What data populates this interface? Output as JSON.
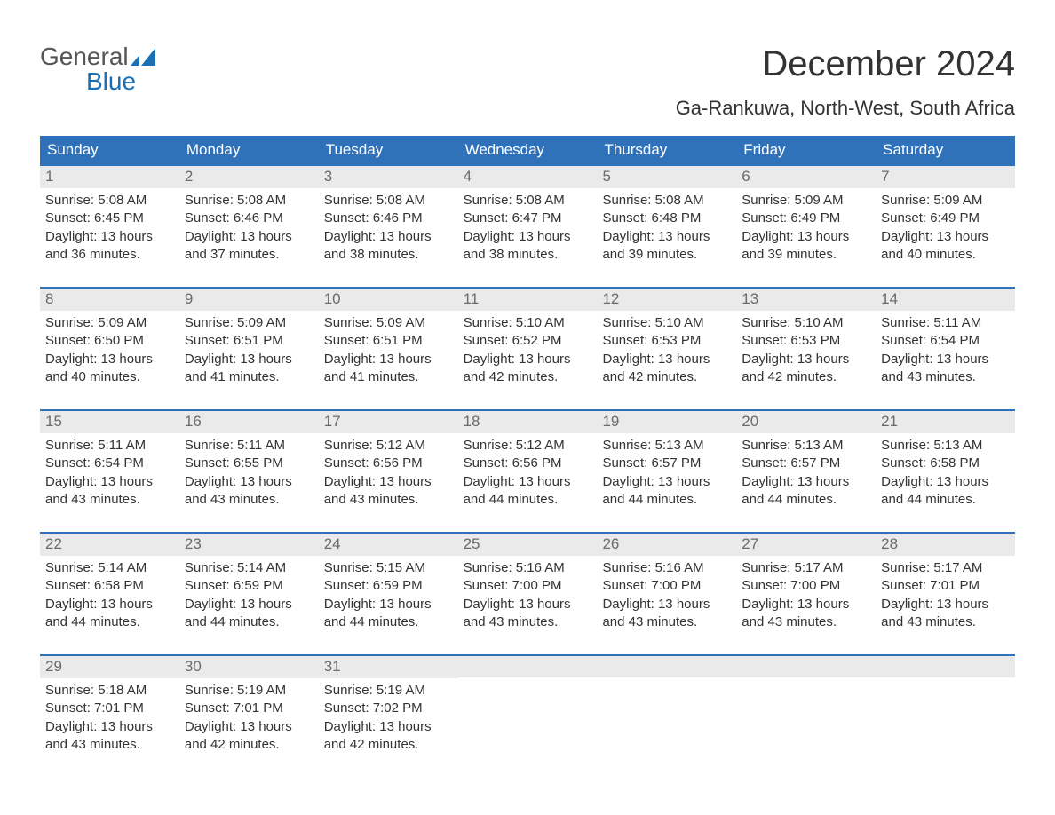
{
  "brand": {
    "top": "General",
    "bottom": "Blue",
    "mark_color": "#1b6fb5",
    "top_color": "#555555"
  },
  "header": {
    "month_title": "December 2024",
    "location": "Ga-Rankuwa, North-West, South Africa"
  },
  "colors": {
    "header_bg": "#2f72b9",
    "header_text": "#ffffff",
    "daynum_bg": "#eaeaea",
    "daynum_text": "#6b6b6b",
    "body_text": "#333333",
    "week_border": "#2f72b9",
    "page_bg": "#ffffff"
  },
  "typography": {
    "title_fontsize": 40,
    "location_fontsize": 22,
    "dow_fontsize": 17,
    "daynum_fontsize": 17,
    "body_fontsize": 15,
    "font_family": "Arial"
  },
  "labels": {
    "sunrise_prefix": "Sunrise: ",
    "sunset_prefix": "Sunset: ",
    "daylight_prefix": "Daylight: ",
    "hours_word": " hours",
    "and_word": "and ",
    "minutes_word": " minutes."
  },
  "days_of_week": [
    "Sunday",
    "Monday",
    "Tuesday",
    "Wednesday",
    "Thursday",
    "Friday",
    "Saturday"
  ],
  "calendar": {
    "type": "table",
    "columns": 7,
    "rows": 5,
    "weeks": [
      [
        {
          "num": "1",
          "sunrise": "5:08 AM",
          "sunset": "6:45 PM",
          "dl_h": "13",
          "dl_m": "36"
        },
        {
          "num": "2",
          "sunrise": "5:08 AM",
          "sunset": "6:46 PM",
          "dl_h": "13",
          "dl_m": "37"
        },
        {
          "num": "3",
          "sunrise": "5:08 AM",
          "sunset": "6:46 PM",
          "dl_h": "13",
          "dl_m": "38"
        },
        {
          "num": "4",
          "sunrise": "5:08 AM",
          "sunset": "6:47 PM",
          "dl_h": "13",
          "dl_m": "38"
        },
        {
          "num": "5",
          "sunrise": "5:08 AM",
          "sunset": "6:48 PM",
          "dl_h": "13",
          "dl_m": "39"
        },
        {
          "num": "6",
          "sunrise": "5:09 AM",
          "sunset": "6:49 PM",
          "dl_h": "13",
          "dl_m": "39"
        },
        {
          "num": "7",
          "sunrise": "5:09 AM",
          "sunset": "6:49 PM",
          "dl_h": "13",
          "dl_m": "40"
        }
      ],
      [
        {
          "num": "8",
          "sunrise": "5:09 AM",
          "sunset": "6:50 PM",
          "dl_h": "13",
          "dl_m": "40"
        },
        {
          "num": "9",
          "sunrise": "5:09 AM",
          "sunset": "6:51 PM",
          "dl_h": "13",
          "dl_m": "41"
        },
        {
          "num": "10",
          "sunrise": "5:09 AM",
          "sunset": "6:51 PM",
          "dl_h": "13",
          "dl_m": "41"
        },
        {
          "num": "11",
          "sunrise": "5:10 AM",
          "sunset": "6:52 PM",
          "dl_h": "13",
          "dl_m": "42"
        },
        {
          "num": "12",
          "sunrise": "5:10 AM",
          "sunset": "6:53 PM",
          "dl_h": "13",
          "dl_m": "42"
        },
        {
          "num": "13",
          "sunrise": "5:10 AM",
          "sunset": "6:53 PM",
          "dl_h": "13",
          "dl_m": "42"
        },
        {
          "num": "14",
          "sunrise": "5:11 AM",
          "sunset": "6:54 PM",
          "dl_h": "13",
          "dl_m": "43"
        }
      ],
      [
        {
          "num": "15",
          "sunrise": "5:11 AM",
          "sunset": "6:54 PM",
          "dl_h": "13",
          "dl_m": "43"
        },
        {
          "num": "16",
          "sunrise": "5:11 AM",
          "sunset": "6:55 PM",
          "dl_h": "13",
          "dl_m": "43"
        },
        {
          "num": "17",
          "sunrise": "5:12 AM",
          "sunset": "6:56 PM",
          "dl_h": "13",
          "dl_m": "43"
        },
        {
          "num": "18",
          "sunrise": "5:12 AM",
          "sunset": "6:56 PM",
          "dl_h": "13",
          "dl_m": "44"
        },
        {
          "num": "19",
          "sunrise": "5:13 AM",
          "sunset": "6:57 PM",
          "dl_h": "13",
          "dl_m": "44"
        },
        {
          "num": "20",
          "sunrise": "5:13 AM",
          "sunset": "6:57 PM",
          "dl_h": "13",
          "dl_m": "44"
        },
        {
          "num": "21",
          "sunrise": "5:13 AM",
          "sunset": "6:58 PM",
          "dl_h": "13",
          "dl_m": "44"
        }
      ],
      [
        {
          "num": "22",
          "sunrise": "5:14 AM",
          "sunset": "6:58 PM",
          "dl_h": "13",
          "dl_m": "44"
        },
        {
          "num": "23",
          "sunrise": "5:14 AM",
          "sunset": "6:59 PM",
          "dl_h": "13",
          "dl_m": "44"
        },
        {
          "num": "24",
          "sunrise": "5:15 AM",
          "sunset": "6:59 PM",
          "dl_h": "13",
          "dl_m": "44"
        },
        {
          "num": "25",
          "sunrise": "5:16 AM",
          "sunset": "7:00 PM",
          "dl_h": "13",
          "dl_m": "43"
        },
        {
          "num": "26",
          "sunrise": "5:16 AM",
          "sunset": "7:00 PM",
          "dl_h": "13",
          "dl_m": "43"
        },
        {
          "num": "27",
          "sunrise": "5:17 AM",
          "sunset": "7:00 PM",
          "dl_h": "13",
          "dl_m": "43"
        },
        {
          "num": "28",
          "sunrise": "5:17 AM",
          "sunset": "7:01 PM",
          "dl_h": "13",
          "dl_m": "43"
        }
      ],
      [
        {
          "num": "29",
          "sunrise": "5:18 AM",
          "sunset": "7:01 PM",
          "dl_h": "13",
          "dl_m": "43"
        },
        {
          "num": "30",
          "sunrise": "5:19 AM",
          "sunset": "7:01 PM",
          "dl_h": "13",
          "dl_m": "42"
        },
        {
          "num": "31",
          "sunrise": "5:19 AM",
          "sunset": "7:02 PM",
          "dl_h": "13",
          "dl_m": "42"
        },
        null,
        null,
        null,
        null
      ]
    ]
  }
}
